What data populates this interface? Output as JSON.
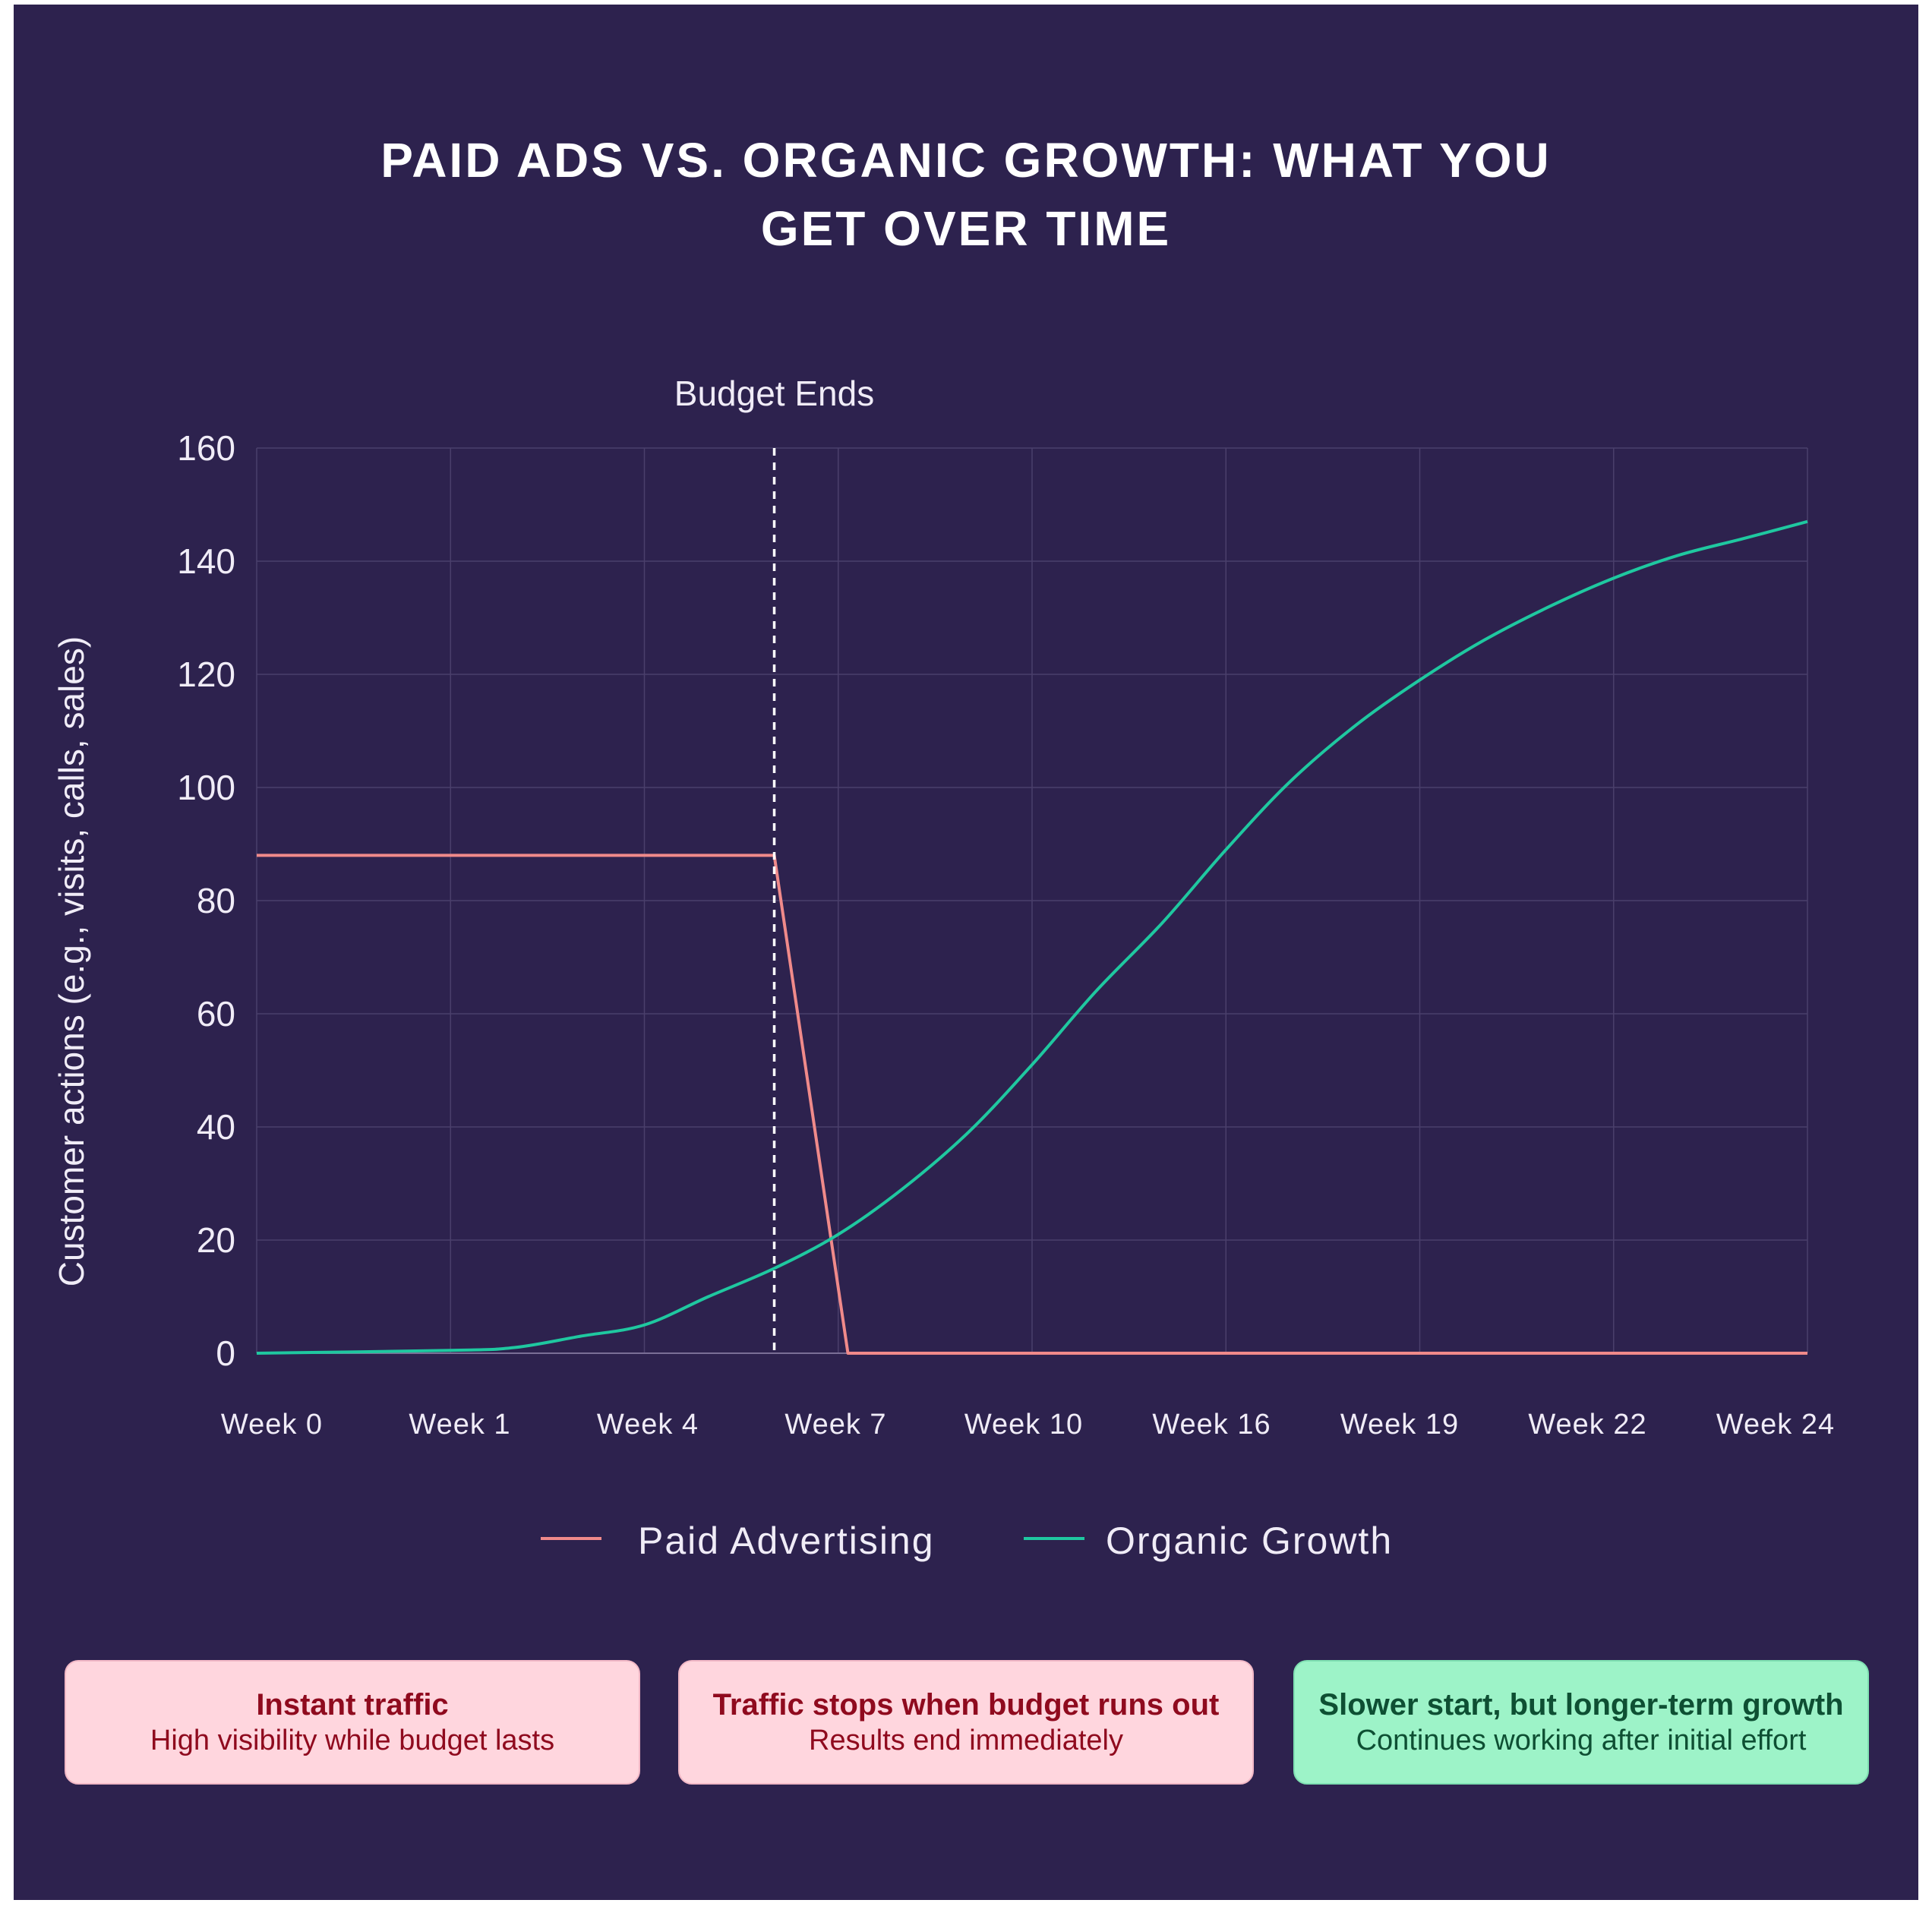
{
  "title_lines": [
    "PAID ADS VS. ORGANIC GROWTH: WHAT YOU",
    "GET OVER TIME"
  ],
  "colors": {
    "background": "#2d224e",
    "paid": "#f08a8a",
    "organic": "#1fc8a0",
    "grid": "#4a3f6b",
    "text": "#f0ecf7",
    "card_red_bg": "#ffd6de",
    "card_red_text": "#8f0a1e",
    "card_green_bg": "#9df3c8",
    "card_green_text": "#0e4f33"
  },
  "chart_data": {
    "type": "line",
    "title": "PAID ADS VS. ORGANIC GROWTH: WHAT YOU GET OVER TIME",
    "xlabel": "",
    "ylabel": "Customer actions (e.g., visits, calls, sales)",
    "ylim": [
      0,
      160
    ],
    "yticks": [
      0,
      20,
      40,
      60,
      80,
      100,
      120,
      140,
      160
    ],
    "grid": true,
    "legend_position": "bottom-center",
    "x_tick_labels": [
      "Week 0",
      "Week 1",
      "Week 4",
      "Week 7",
      "Week 10",
      "Week 16",
      "Week 19",
      "Week 22",
      "Week 24"
    ],
    "x_tick_positions": [
      0,
      1,
      2,
      3,
      4,
      5,
      6,
      7,
      8
    ],
    "xlim": [
      0,
      8
    ],
    "annotations": [
      {
        "text": "Budget Ends",
        "x": 2.67,
        "style": "dashed vertical line"
      }
    ],
    "series": [
      {
        "name": "Paid Advertising",
        "color": "#f08a8a",
        "x": [
          0,
          2.67,
          3.05,
          8
        ],
        "y": [
          88,
          88,
          0,
          0
        ]
      },
      {
        "name": "Organic Growth",
        "color": "#1fc8a0",
        "x": [
          0,
          1,
          1.33,
          1.67,
          2,
          2.33,
          2.67,
          3,
          3.33,
          3.67,
          4,
          4.33,
          4.67,
          5,
          5.33,
          5.67,
          6,
          6.33,
          6.67,
          7,
          7.33,
          7.67,
          8
        ],
        "y": [
          0,
          0.5,
          1,
          3,
          5,
          10,
          15,
          21,
          29,
          39,
          51,
          64,
          76,
          89,
          101,
          111,
          119,
          126,
          132,
          137,
          141,
          144,
          147
        ]
      }
    ]
  },
  "cards": [
    {
      "title": "Instant traffic",
      "subtitle": "High visibility while budget lasts"
    },
    {
      "title": "Traffic stops when budget runs out",
      "subtitle": "Results end immediately"
    },
    {
      "title": "Slower start, but longer-term growth",
      "subtitle": "Continues working after initial effort"
    }
  ]
}
